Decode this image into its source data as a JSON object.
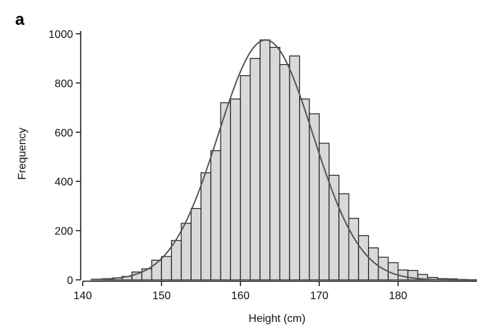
{
  "panel_label": "a",
  "chart_data": {
    "type": "bar",
    "title": "",
    "xlabel": "Height (cm)",
    "ylabel": "Frequency",
    "xlim": [
      140,
      190
    ],
    "ylim": [
      0,
      1000
    ],
    "bin_width": 1.25,
    "xticks": [
      140,
      150,
      160,
      170,
      180
    ],
    "yticks": [
      0,
      200,
      400,
      600,
      800,
      1000
    ],
    "grid": false,
    "legend": "none",
    "bins": [
      {
        "start": 141.25,
        "end": 142.5,
        "value": 3
      },
      {
        "start": 142.5,
        "end": 143.75,
        "value": 5
      },
      {
        "start": 143.75,
        "end": 145.0,
        "value": 8
      },
      {
        "start": 145.0,
        "end": 146.25,
        "value": 14
      },
      {
        "start": 146.25,
        "end": 147.5,
        "value": 32
      },
      {
        "start": 147.5,
        "end": 148.75,
        "value": 45
      },
      {
        "start": 148.75,
        "end": 150.0,
        "value": 80
      },
      {
        "start": 150.0,
        "end": 151.25,
        "value": 95
      },
      {
        "start": 151.25,
        "end": 152.5,
        "value": 160
      },
      {
        "start": 152.5,
        "end": 153.75,
        "value": 230
      },
      {
        "start": 153.75,
        "end": 155.0,
        "value": 290
      },
      {
        "start": 155.0,
        "end": 156.25,
        "value": 435
      },
      {
        "start": 156.25,
        "end": 157.5,
        "value": 525
      },
      {
        "start": 157.5,
        "end": 158.75,
        "value": 720
      },
      {
        "start": 158.75,
        "end": 160.0,
        "value": 735
      },
      {
        "start": 160.0,
        "end": 161.25,
        "value": 830
      },
      {
        "start": 161.25,
        "end": 162.5,
        "value": 900
      },
      {
        "start": 162.5,
        "end": 163.75,
        "value": 975
      },
      {
        "start": 163.75,
        "end": 165.0,
        "value": 945
      },
      {
        "start": 165.0,
        "end": 166.25,
        "value": 875
      },
      {
        "start": 166.25,
        "end": 167.5,
        "value": 910
      },
      {
        "start": 167.5,
        "end": 168.75,
        "value": 735
      },
      {
        "start": 168.75,
        "end": 170.0,
        "value": 675
      },
      {
        "start": 170.0,
        "end": 171.25,
        "value": 555
      },
      {
        "start": 171.25,
        "end": 172.5,
        "value": 425
      },
      {
        "start": 172.5,
        "end": 173.75,
        "value": 350
      },
      {
        "start": 173.75,
        "end": 175.0,
        "value": 250
      },
      {
        "start": 175.0,
        "end": 176.25,
        "value": 180
      },
      {
        "start": 176.25,
        "end": 177.5,
        "value": 130
      },
      {
        "start": 177.5,
        "end": 178.75,
        "value": 92
      },
      {
        "start": 178.75,
        "end": 180.0,
        "value": 70
      },
      {
        "start": 180.0,
        "end": 181.25,
        "value": 40
      },
      {
        "start": 181.25,
        "end": 182.5,
        "value": 38
      },
      {
        "start": 182.5,
        "end": 183.75,
        "value": 22
      },
      {
        "start": 183.75,
        "end": 185.0,
        "value": 10
      },
      {
        "start": 185.0,
        "end": 186.25,
        "value": 5
      },
      {
        "start": 186.25,
        "end": 187.5,
        "value": 4
      },
      {
        "start": 187.5,
        "end": 188.75,
        "value": 2
      }
    ],
    "density_curve": {
      "shape": "normal",
      "mean": 163.2,
      "peak": 975,
      "sd": 6.0,
      "x_range": [
        141,
        190
      ]
    },
    "colors": {
      "bar_fill": "#d9d9d9",
      "bar_stroke": "#1a1a1a",
      "curve": "#555555",
      "axis": "#111111"
    }
  }
}
